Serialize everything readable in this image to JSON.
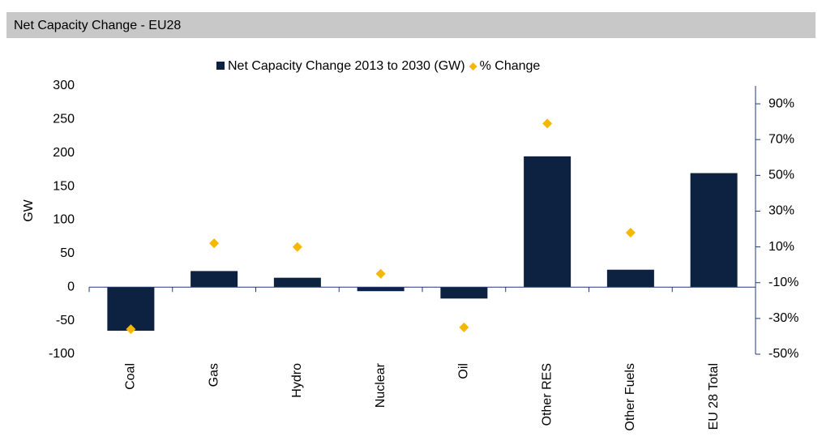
{
  "chart_data": {
    "type": "bar",
    "title": "Net Capacity Change - EU28",
    "categories": [
      "Coal",
      "Gas",
      "Hydro",
      "Nuclear",
      "Oil",
      "Other RES",
      "Other Fuels",
      "EU 28 Total"
    ],
    "series": [
      {
        "name": "Net Capacity Change 2013 to 2030 (GW)",
        "color": "#0d2240",
        "type": "bar",
        "values": [
          -65,
          24,
          14,
          -6,
          -17,
          195,
          26,
          170
        ]
      },
      {
        "name": "% Change",
        "color": "#f5b800",
        "type": "scatter",
        "axis": "y2",
        "values": [
          -36,
          12,
          10,
          -5,
          -35,
          79,
          18
        ]
      }
    ],
    "ylabel": "GW",
    "ylim": [
      -100,
      300
    ],
    "yticks": [
      -100,
      -50,
      0,
      50,
      100,
      150,
      200,
      250,
      300
    ],
    "y2lim": [
      -50,
      100
    ],
    "y2ticks": [
      {
        "value": -50,
        "label": "-50%"
      },
      {
        "value": -30,
        "label": "-30%"
      },
      {
        "value": -10,
        "label": "-10%"
      },
      {
        "value": 10,
        "label": "10%"
      },
      {
        "value": 30,
        "label": "30%"
      },
      {
        "value": 50,
        "label": "50%"
      },
      {
        "value": 70,
        "label": "70%"
      },
      {
        "value": 90,
        "label": "90%"
      }
    ],
    "legend": "top",
    "grid": false
  }
}
